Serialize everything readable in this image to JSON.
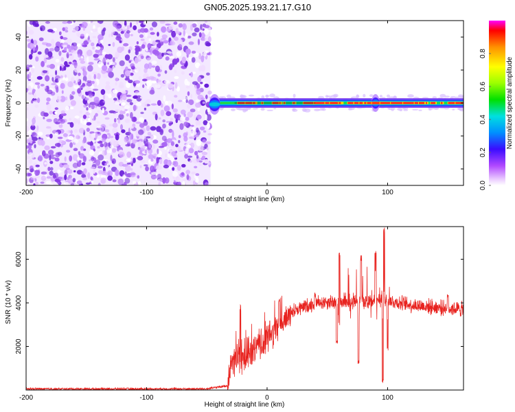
{
  "title": "GN05.2025.193.21.17.G10",
  "colors": {
    "noise": "#7a2bd9",
    "snr_line": "#e8231f",
    "colormap": [
      "#ffffff",
      "#e9c8ff",
      "#b048ff",
      "#3a0cff",
      "#0090ff",
      "#00e0e0",
      "#00e000",
      "#9bff00",
      "#ffff00",
      "#ff9000",
      "#ff0000",
      "#ff00ff"
    ]
  },
  "chart_data": [
    {
      "type": "heatmap",
      "xlabel": "Height of straight line (km)",
      "ylabel": "Frequency (Hz)",
      "xlim": [
        -200,
        163
      ],
      "ylim": [
        -50,
        50
      ],
      "xticks": [
        -200,
        -100,
        0,
        100
      ],
      "yticks": [
        -40,
        -20,
        0,
        20,
        40
      ],
      "noise_region_x": [
        -200,
        -47
      ],
      "signal_line_x": [
        -47,
        163
      ],
      "signal_line_freq": 0,
      "colorbar": {
        "label": "Normalized spectral amplitude",
        "ticks": [
          "0.0",
          "0.2",
          "0.4",
          "0.6",
          "0.8"
        ],
        "range": [
          0,
          1
        ]
      }
    },
    {
      "type": "line",
      "xlabel": "Height of straight line (km)",
      "ylabel": "SNR (10 * v/v)",
      "xlim": [
        -200,
        163
      ],
      "ylim": [
        0,
        7500
      ],
      "xticks": [
        -200,
        -100,
        0,
        100
      ],
      "yticks": [
        2000,
        4000,
        6000
      ],
      "grid": false,
      "envelope": [
        {
          "x": -200,
          "y": 50
        },
        {
          "x": -50,
          "y": 50
        },
        {
          "x": -33,
          "y": 200
        },
        {
          "x": -30,
          "y": 1300
        },
        {
          "x": -20,
          "y": 1500
        },
        {
          "x": -10,
          "y": 1800
        },
        {
          "x": 0,
          "y": 2400
        },
        {
          "x": 10,
          "y": 2900
        },
        {
          "x": 20,
          "y": 3600
        },
        {
          "x": 30,
          "y": 3800
        },
        {
          "x": 40,
          "y": 4000
        },
        {
          "x": 60,
          "y": 4100
        },
        {
          "x": 80,
          "y": 4100
        },
        {
          "x": 100,
          "y": 4100
        },
        {
          "x": 120,
          "y": 3900
        },
        {
          "x": 140,
          "y": 3800
        },
        {
          "x": 163,
          "y": 3700
        }
      ],
      "spikes": [
        {
          "x": -22,
          "y": 3900
        },
        {
          "x": 10,
          "y": 4300
        },
        {
          "x": 40,
          "y": 4500
        },
        {
          "x": 60,
          "y": 6400
        },
        {
          "x": 78,
          "y": 6200
        },
        {
          "x": 90,
          "y": 6400
        },
        {
          "x": 97,
          "y": 7500
        },
        {
          "x": 150,
          "y": 4500
        }
      ],
      "dips": [
        {
          "x": 58,
          "y": 2100
        },
        {
          "x": 76,
          "y": 1200
        },
        {
          "x": 96,
          "y": 300
        },
        {
          "x": 100,
          "y": 1800
        }
      ]
    }
  ]
}
